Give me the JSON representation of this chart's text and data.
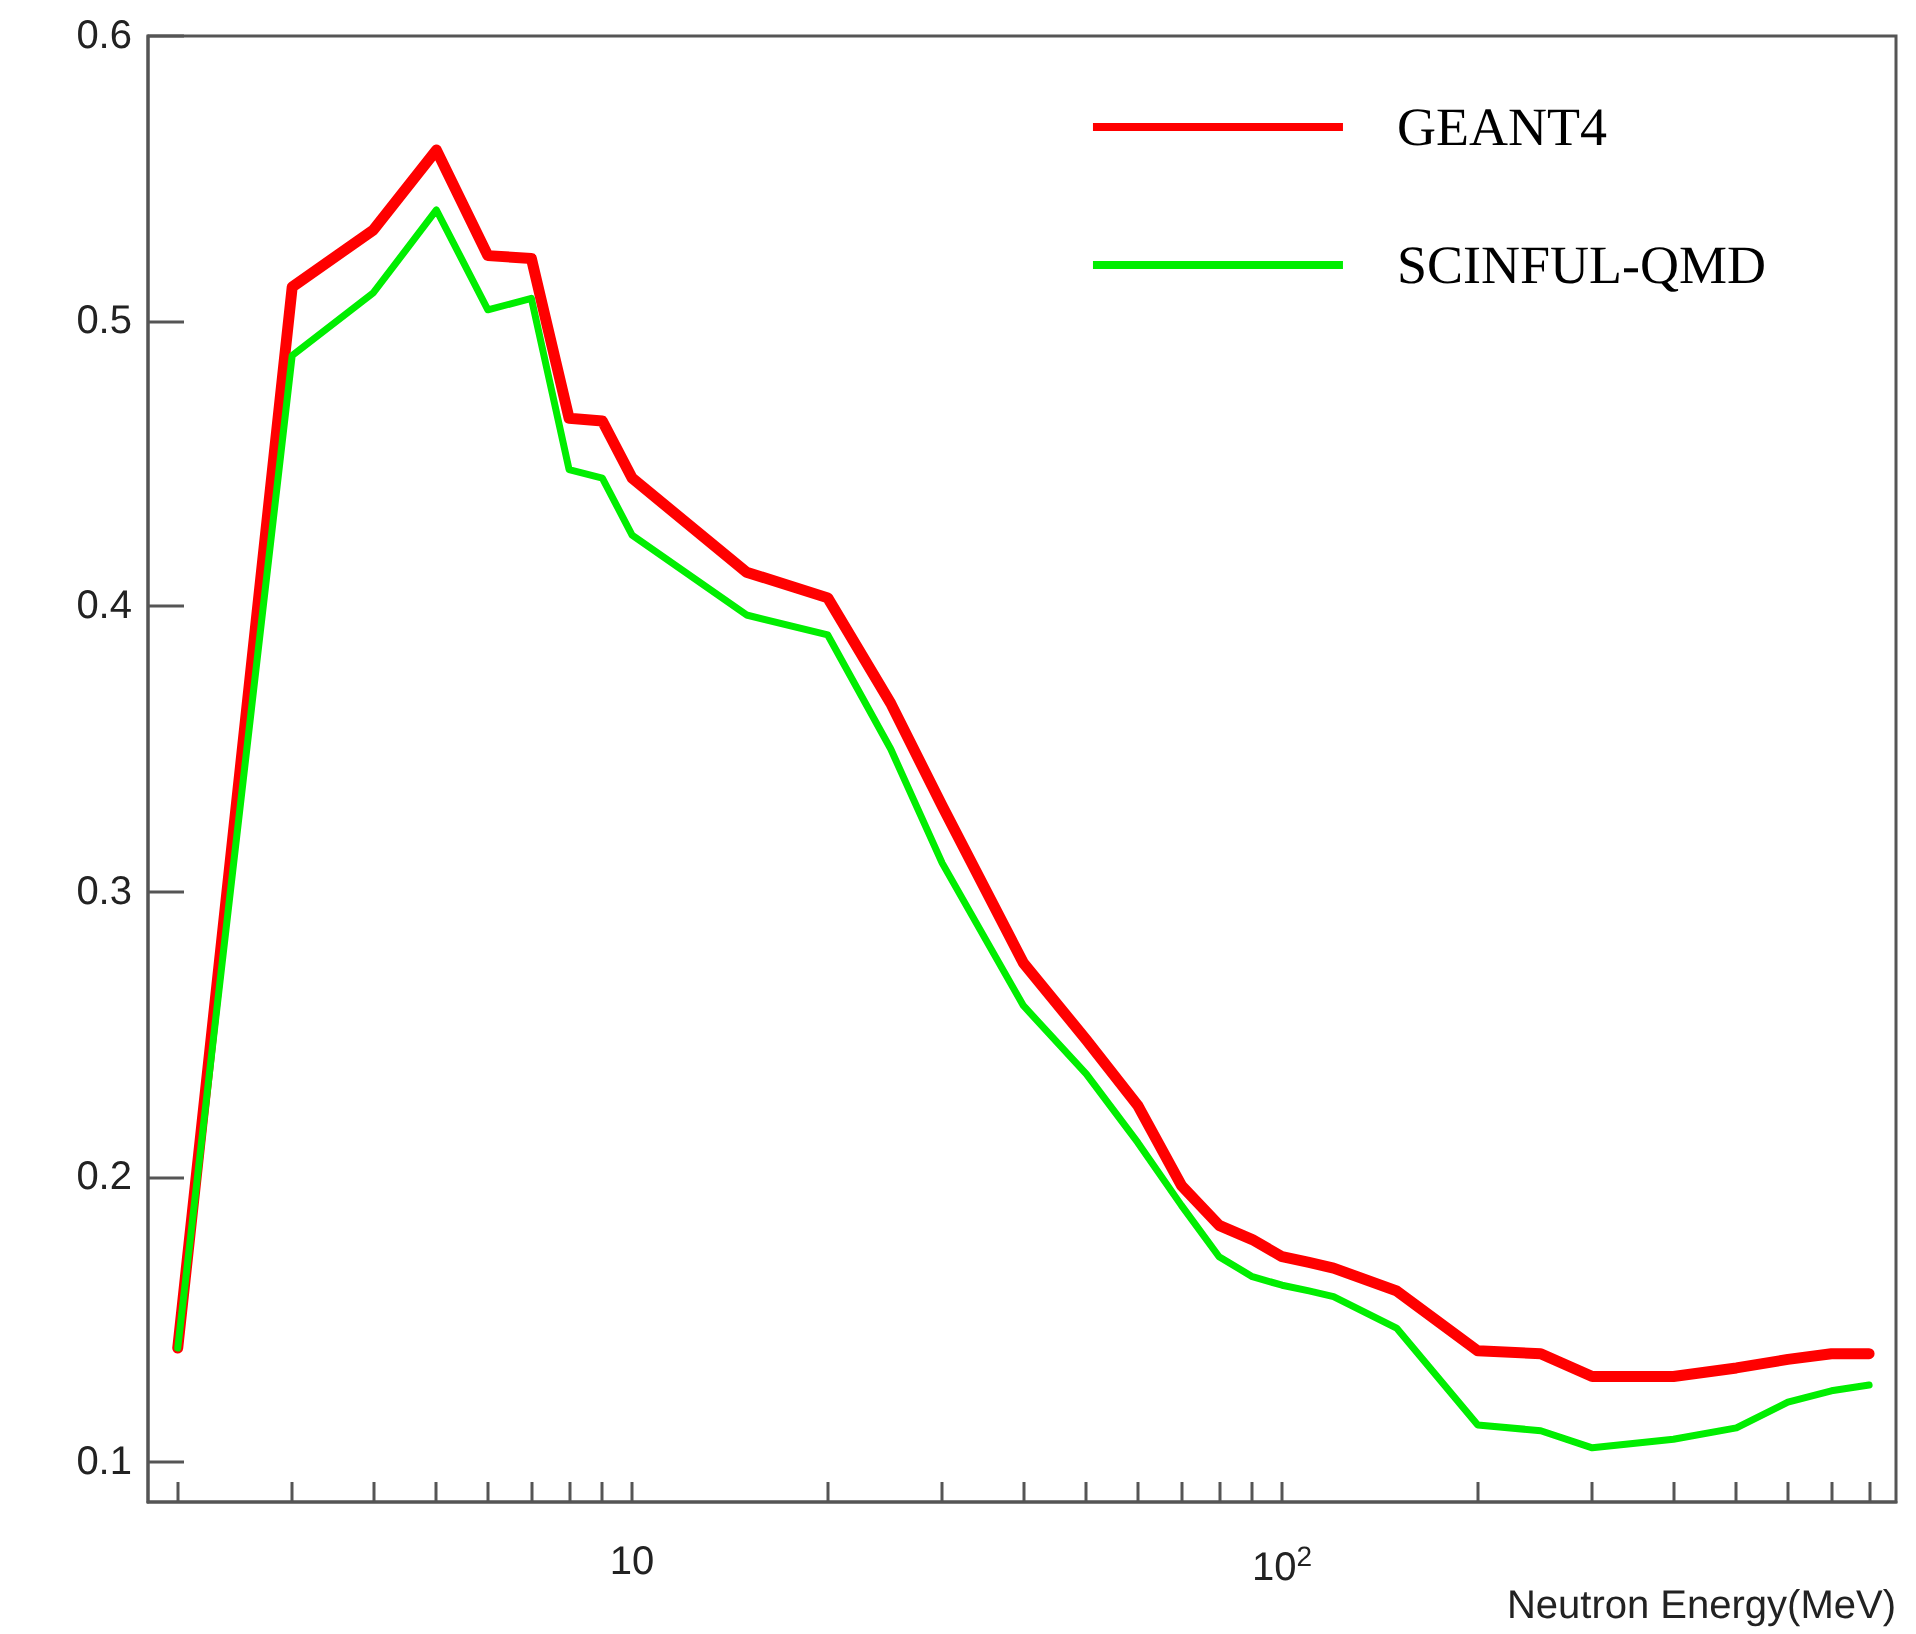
{
  "chart_data": {
    "type": "line",
    "xlabel": "Neutron Energy(MeV)",
    "log": "x",
    "grid": false,
    "legend": "top right",
    "marker": "none",
    "line_style": "solid",
    "xlim": [
      1.8,
      880
    ],
    "ylim": [
      0.086,
      0.6
    ],
    "xticks": [
      {
        "value": 2,
        "label": null
      },
      {
        "value": 3,
        "label": null
      },
      {
        "value": 4,
        "label": null
      },
      {
        "value": 5,
        "label": null
      },
      {
        "value": 6,
        "label": null
      },
      {
        "value": 7,
        "label": null
      },
      {
        "value": 8,
        "label": null
      },
      {
        "value": 9,
        "label": null
      },
      10,
      {
        "value": 20,
        "label": null
      },
      {
        "value": 30,
        "label": null
      },
      {
        "value": 40,
        "label": null
      },
      {
        "value": 50,
        "label": null
      },
      {
        "value": 60,
        "label": null
      },
      {
        "value": 70,
        "label": null
      },
      {
        "value": 80,
        "label": null
      },
      {
        "value": 90,
        "label": null
      },
      {
        "value": 100,
        "label": "10$^{2}$"
      },
      {
        "value": 200,
        "label": null
      },
      {
        "value": 300,
        "label": null
      },
      {
        "value": 400,
        "label": null
      },
      {
        "value": 500,
        "label": null
      },
      {
        "value": 600,
        "label": null
      },
      {
        "value": 700,
        "label": null
      },
      {
        "value": 800,
        "label": null
      }
    ],
    "yticks": [
      0.1,
      0.2,
      0.3,
      0.4,
      0.5,
      0.6
    ],
    "x": [
      2,
      3,
      4,
      5,
      6,
      7,
      8,
      9,
      10,
      15,
      20,
      25,
      30,
      40,
      50,
      60,
      70,
      80,
      90,
      100,
      110,
      120,
      150,
      200,
      250,
      300,
      400,
      500,
      600,
      700,
      800
    ],
    "series": [
      {
        "name": "GEANT4",
        "color": "#ff0000",
        "values": [
          0.14,
          0.512,
          0.532,
          0.56,
          0.523,
          0.522,
          0.466,
          0.465,
          0.445,
          0.412,
          0.403,
          0.366,
          0.33,
          0.275,
          0.248,
          0.225,
          0.197,
          0.183,
          0.178,
          0.172,
          0.17,
          0.168,
          0.16,
          0.139,
          0.138,
          0.13,
          0.13,
          0.133,
          0.136,
          0.138,
          0.138
        ]
      },
      {
        "name": "SCINFUL-QMD",
        "color": "#00ee00",
        "values": [
          0.14,
          0.488,
          0.51,
          0.539,
          0.504,
          0.508,
          0.448,
          0.445,
          0.425,
          0.397,
          0.39,
          0.35,
          0.31,
          0.26,
          0.236,
          0.212,
          0.19,
          0.172,
          0.165,
          0.162,
          0.16,
          0.158,
          0.147,
          0.113,
          0.111,
          0.105,
          0.108,
          0.112,
          0.121,
          0.125,
          0.127
        ]
      }
    ]
  }
}
